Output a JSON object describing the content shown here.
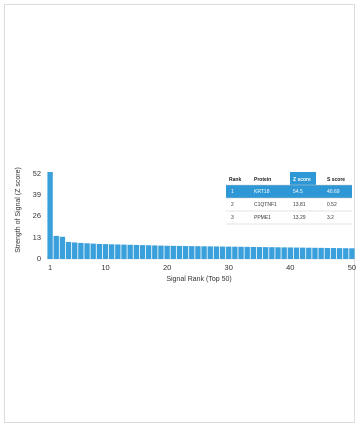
{
  "chart_data": {
    "type": "bar",
    "xlabel": "Signal Rank (Top 50)",
    "ylabel": "Strength of Signal (Z score)",
    "ylim": [
      0,
      52
    ],
    "yticks": [
      "52",
      "39",
      "26",
      "13",
      "0"
    ],
    "xticks": [
      "1",
      "10",
      "20",
      "30",
      "40",
      "50"
    ],
    "x": [
      1,
      2,
      3,
      4,
      5,
      6,
      7,
      8,
      9,
      10,
      11,
      12,
      13,
      14,
      15,
      16,
      17,
      18,
      19,
      20,
      21,
      22,
      23,
      24,
      25,
      26,
      27,
      28,
      29,
      30,
      31,
      32,
      33,
      34,
      35,
      36,
      37,
      38,
      39,
      40,
      41,
      42,
      43,
      44,
      45,
      46,
      47,
      48,
      49,
      50
    ],
    "values": [
      54.5,
      13.81,
      13.29,
      10.2,
      9.9,
      9.6,
      9.4,
      9.2,
      9.0,
      8.9,
      8.8,
      8.7,
      8.6,
      8.5,
      8.4,
      8.3,
      8.2,
      8.1,
      8.0,
      7.9,
      7.85,
      7.8,
      7.75,
      7.7,
      7.65,
      7.6,
      7.55,
      7.5,
      7.45,
      7.4,
      7.35,
      7.3,
      7.25,
      7.2,
      7.15,
      7.1,
      7.05,
      7.0,
      6.95,
      6.9,
      6.85,
      6.8,
      6.75,
      6.7,
      6.65,
      6.6,
      6.55,
      6.5,
      6.45,
      6.4
    ],
    "bar_color": "#3aa0dc",
    "grid": false
  },
  "table": {
    "headers": [
      "Rank",
      "Protein",
      "Z score",
      "S score"
    ],
    "highlight_color": "#2e98d6",
    "rows": [
      {
        "rank": "1",
        "protein": "KRT18",
        "z": "54.5",
        "s": "40.69"
      },
      {
        "rank": "2",
        "protein": "C1QTNF1",
        "z": "13.81",
        "s": "0.52"
      },
      {
        "rank": "3",
        "protein": "PPME1",
        "z": "13.29",
        "s": "3.2"
      }
    ]
  }
}
